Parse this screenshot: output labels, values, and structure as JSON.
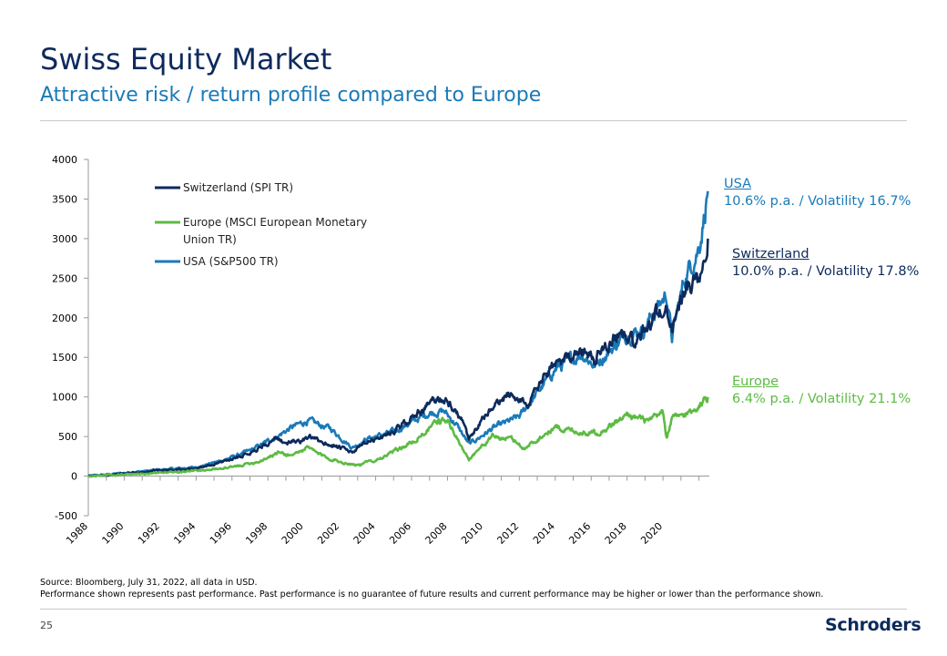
{
  "header": {
    "title": "Swiss Equity Market",
    "subtitle": "Attractive risk / return profile compared to Europe"
  },
  "colors": {
    "switzerland": "#0d2a5c",
    "europe": "#5dbb43",
    "usa": "#1a7ab8",
    "axis": "#999999"
  },
  "chart_data": {
    "type": "line",
    "title": "",
    "xlabel": "",
    "ylabel": "",
    "xlim": [
      1988,
      2022.58
    ],
    "ylim": [
      -500,
      4000
    ],
    "yticks": [
      -500,
      0,
      500,
      1000,
      1500,
      2000,
      2500,
      3000,
      3500,
      4000
    ],
    "ytick_labels": [
      "-500",
      "0",
      "500",
      "1000",
      "1500",
      "2000",
      "2500",
      "3000",
      "3500",
      "4000"
    ],
    "xticks": [
      1988,
      1990,
      1992,
      1994,
      1996,
      1998,
      2000,
      2002,
      2004,
      2006,
      2008,
      2010,
      2012,
      2014,
      2016,
      2018,
      2020
    ],
    "xtick_labels": [
      "1988",
      "1990",
      "1992",
      "1994",
      "1996",
      "1998",
      "2000",
      "2002",
      "2004",
      "2006",
      "2008",
      "2010",
      "2012",
      "2014",
      "2016",
      "2018",
      "2020"
    ],
    "legend": [
      {
        "key": "switzerland",
        "lines": [
          "Switzerland (SPI TR)"
        ]
      },
      {
        "key": "europe",
        "lines": [
          "Europe (MSCI European Monetary",
          "Union TR)"
        ]
      },
      {
        "key": "usa",
        "lines": [
          "USA (S&P500 TR)"
        ]
      }
    ],
    "series": [
      {
        "key": "usa",
        "name": "USA (S&P500 TR)",
        "x": [
          1988,
          1990,
          1992,
          1994,
          1995.5,
          1997,
          1998.5,
          1999.2,
          2000.2,
          2000.7,
          2001.5,
          2002.7,
          2003.5,
          2005,
          2007,
          2007.8,
          2008.5,
          2009.2,
          2010.5,
          2012,
          2014,
          2015.5,
          2016.2,
          2018,
          2018.9,
          2019.6,
          2020.2,
          2020.5,
          2021.2,
          2022,
          2022.5
        ],
        "values": [
          0,
          40,
          80,
          110,
          200,
          320,
          500,
          600,
          700,
          660,
          600,
          360,
          470,
          560,
          800,
          820,
          650,
          400,
          600,
          750,
          1350,
          1550,
          1400,
          1800,
          1850,
          2100,
          2300,
          1750,
          2500,
          2900,
          3600
        ]
      },
      {
        "key": "switzerland",
        "name": "Switzerland (SPI TR)",
        "x": [
          1988,
          1990,
          1992,
          1994,
          1995.5,
          1997,
          1998.4,
          1999.2,
          2000.3,
          2001.2,
          2002.7,
          2003.5,
          2005,
          2007.2,
          2007.9,
          2008.8,
          2009.2,
          2010.2,
          2011.5,
          2012.5,
          2013.5,
          2015.2,
          2016.2,
          2017.5,
          2018.6,
          2019.5,
          2020.2,
          2020.5,
          2021.3,
          2022,
          2022.5
        ],
        "values": [
          0,
          30,
          70,
          100,
          180,
          300,
          460,
          420,
          480,
          420,
          300,
          420,
          560,
          950,
          980,
          700,
          450,
          800,
          1050,
          900,
          1300,
          1600,
          1500,
          1800,
          1700,
          2000,
          2150,
          1900,
          2400,
          2500,
          3000
        ]
      },
      {
        "key": "europe",
        "name": "Europe (MSCI European Monetary Union TR)",
        "x": [
          1988,
          1990,
          1992,
          1994,
          1996,
          1997.5,
          1998.6,
          1999.3,
          2000.2,
          2001,
          2002.2,
          2003.1,
          2004.5,
          2006,
          2007.5,
          2008.1,
          2008.8,
          2009.2,
          2010.5,
          2011.6,
          2012.3,
          2014,
          2015.5,
          2016.5,
          2018.1,
          2019.2,
          2020,
          2020.2,
          2020.5,
          2021.5,
          2022,
          2022.5
        ],
        "values": [
          0,
          20,
          40,
          70,
          110,
          190,
          300,
          260,
          360,
          260,
          170,
          140,
          250,
          420,
          700,
          680,
          350,
          220,
          500,
          460,
          350,
          620,
          550,
          560,
          780,
          680,
          800,
          480,
          720,
          800,
          900,
          1000
        ]
      }
    ]
  },
  "annotations": {
    "usa": {
      "name": "USA",
      "stats": "10.6% p.a. / Volatility 16.7%"
    },
    "switzerland": {
      "name": "Switzerland",
      "stats": "10.0% p.a. / Volatility 17.8%"
    },
    "europe": {
      "name": "Europe",
      "stats": "6.4% p.a. / Volatility 21.1%"
    }
  },
  "footer": {
    "source": "Source: Bloomberg, July 31, 2022, all data in USD.",
    "disclaimer": "Performance shown represents past performance. Past performance is no guarantee of future results and current performance may be higher or lower than the performance shown.",
    "page_number": "25",
    "logo_text": "Schroders"
  }
}
